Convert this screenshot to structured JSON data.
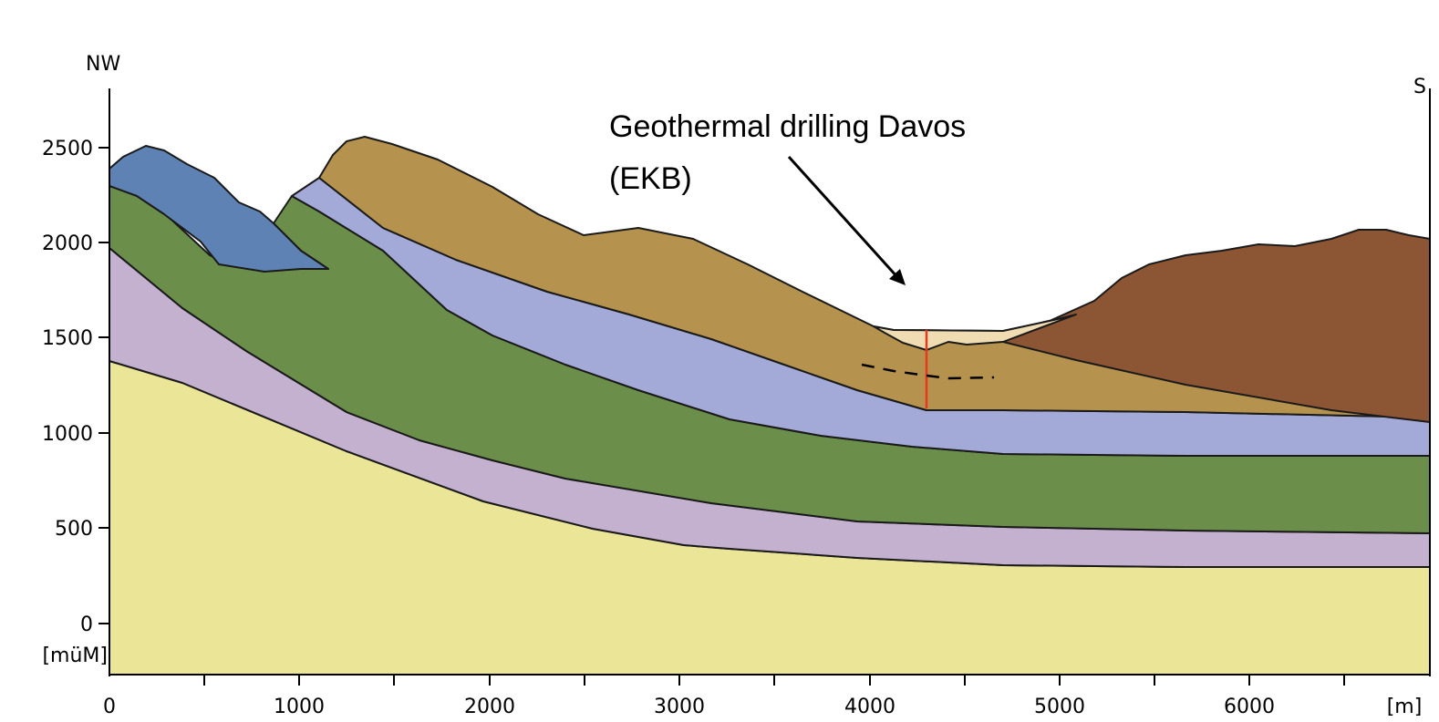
{
  "header": {
    "left_direction": "NW",
    "right_direction": "S"
  },
  "annotation": {
    "line1": "Geothermal drilling Davos",
    "line2": "(EKB)"
  },
  "axes": {
    "y_ticks": [
      "2500",
      "2000",
      "1500",
      "1000",
      "500",
      "0"
    ],
    "y_unit": "[müM]",
    "x_ticks": [
      "0",
      "1000",
      "2000",
      "3000",
      "4000",
      "5000",
      "6000"
    ],
    "x_unit": "[m]"
  },
  "colors": {
    "bedrock_yellow": "#ebe598",
    "lilac": "#c4b0cf",
    "green": "#6b8f4a",
    "periwinkle": "#a3aad8",
    "ochre": "#b5924e",
    "blue": "#5d82b3",
    "brown": "#8c5533",
    "valley_fill": "#efdcb2",
    "borehole": "#e8391e"
  }
}
